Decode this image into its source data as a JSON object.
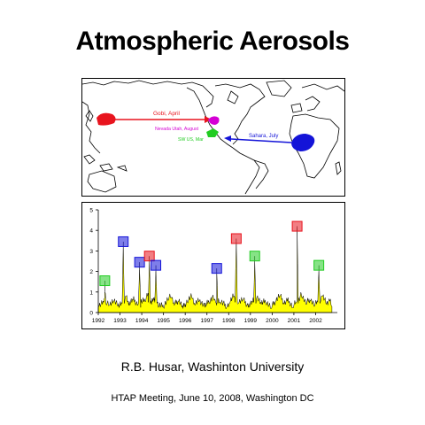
{
  "title": "Atmospheric Aerosols",
  "map": {
    "labels": {
      "gobi": "Gobi, April",
      "nevada": "Nevada Utah, August",
      "sw": "SW US, Mar",
      "sahara": "Sahara, July"
    },
    "colors": {
      "gobi": "#e8141e",
      "nevada": "#d400d4",
      "sw": "#22cc22",
      "sahara": "#1414d8",
      "outline": "#000000"
    }
  },
  "chart_data": {
    "type": "area",
    "title": "",
    "xlabel": "",
    "ylabel": "",
    "ylim": [
      0,
      5
    ],
    "xlim": [
      1992,
      2003
    ],
    "yticks": [
      "0",
      "1",
      "2",
      "3",
      "4",
      "5"
    ],
    "xticks": [
      "1992",
      "1993",
      "1994",
      "1995",
      "1996",
      "1997",
      "1998",
      "1999",
      "2000",
      "2001",
      "2002"
    ],
    "fill_color": "#ffff00",
    "line_color": "#000000",
    "baseline": [
      [
        1992.0,
        0.25
      ],
      [
        1992.3,
        0.7
      ],
      [
        1992.5,
        0.35
      ],
      [
        1992.7,
        0.55
      ],
      [
        1992.9,
        0.3
      ],
      [
        1993.1,
        0.45
      ],
      [
        1993.25,
        0.8
      ],
      [
        1993.4,
        0.35
      ],
      [
        1993.6,
        0.6
      ],
      [
        1993.8,
        0.35
      ],
      [
        1993.95,
        0.25
      ],
      [
        1994.15,
        0.55
      ],
      [
        1994.3,
        0.95
      ],
      [
        1994.45,
        0.4
      ],
      [
        1994.6,
        0.75
      ],
      [
        1994.8,
        0.3
      ],
      [
        1995.0,
        0.25
      ],
      [
        1995.2,
        0.6
      ],
      [
        1995.35,
        0.75
      ],
      [
        1995.5,
        0.35
      ],
      [
        1995.7,
        0.55
      ],
      [
        1995.9,
        0.2
      ],
      [
        1996.1,
        0.5
      ],
      [
        1996.3,
        0.75
      ],
      [
        1996.45,
        0.35
      ],
      [
        1996.65,
        0.55
      ],
      [
        1996.9,
        0.25
      ],
      [
        1997.1,
        0.5
      ],
      [
        1997.3,
        0.7
      ],
      [
        1997.45,
        0.35
      ],
      [
        1997.6,
        0.5
      ],
      [
        1997.9,
        0.25
      ],
      [
        1998.05,
        0.45
      ],
      [
        1998.25,
        0.8
      ],
      [
        1998.45,
        0.45
      ],
      [
        1998.65,
        0.6
      ],
      [
        1998.9,
        0.25
      ],
      [
        1999.1,
        0.5
      ],
      [
        1999.3,
        0.75
      ],
      [
        1999.5,
        0.4
      ],
      [
        1999.7,
        0.5
      ],
      [
        1999.95,
        0.2
      ],
      [
        2000.15,
        0.5
      ],
      [
        2000.35,
        0.8
      ],
      [
        2000.55,
        0.4
      ],
      [
        2000.7,
        0.55
      ],
      [
        2000.95,
        0.25
      ],
      [
        2001.15,
        0.55
      ],
      [
        2001.35,
        0.85
      ],
      [
        2001.55,
        0.4
      ],
      [
        2001.75,
        0.6
      ],
      [
        2001.95,
        0.3
      ],
      [
        2002.1,
        0.5
      ],
      [
        2002.3,
        0.8
      ],
      [
        2002.5,
        0.4
      ],
      [
        2002.65,
        0.55
      ],
      [
        2002.75,
        0.3
      ]
    ],
    "events": [
      {
        "x": 1992.3,
        "y": 1.0,
        "box_y": 1.55,
        "color": "#22cc22"
      },
      {
        "x": 1993.15,
        "y": 3.3,
        "box_y": 3.45,
        "color": "#1414d8"
      },
      {
        "x": 1993.9,
        "y": 2.1,
        "box_y": 2.45,
        "color": "#1414d8"
      },
      {
        "x": 1994.35,
        "y": 2.5,
        "box_y": 2.75,
        "color": "#e8141e"
      },
      {
        "x": 1994.65,
        "y": 2.0,
        "box_y": 2.3,
        "color": "#1414d8"
      },
      {
        "x": 1997.45,
        "y": 1.9,
        "box_y": 2.15,
        "color": "#1414d8"
      },
      {
        "x": 1998.35,
        "y": 3.4,
        "box_y": 3.6,
        "color": "#e8141e"
      },
      {
        "x": 1999.2,
        "y": 2.5,
        "box_y": 2.75,
        "color": "#22cc22"
      },
      {
        "x": 2001.15,
        "y": 4.1,
        "box_y": 4.2,
        "color": "#e8141e"
      },
      {
        "x": 2002.15,
        "y": 2.0,
        "box_y": 2.3,
        "color": "#22cc22"
      }
    ]
  },
  "author": "R.B. Husar, Washinton University",
  "meeting": "HTAP Meeting, June 10, 2008, Washington DC"
}
